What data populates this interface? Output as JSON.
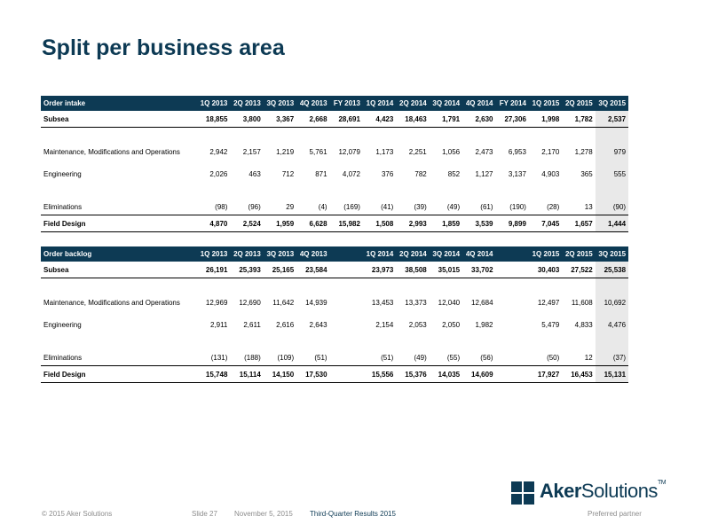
{
  "title": "Split per business area",
  "order_intake": {
    "header": [
      "Order intake",
      "1Q 2013",
      "2Q 2013",
      "3Q 2013",
      "4Q 2013",
      "FY 2013",
      "1Q 2014",
      "2Q 2014",
      "3Q 2014",
      "4Q 2014",
      "FY 2014",
      "1Q 2015",
      "2Q 2015",
      "3Q 2015"
    ],
    "rows": [
      [
        "Subsea",
        "18,855",
        "3,800",
        "3,367",
        "2,668",
        "28,691",
        "4,423",
        "18,463",
        "1,791",
        "2,630",
        "27,306",
        "1,998",
        "1,782",
        "2,537"
      ],
      [
        "Maintenance, Modifications and Operations",
        "2,942",
        "2,157",
        "1,219",
        "5,761",
        "12,079",
        "1,173",
        "2,251",
        "1,056",
        "2,473",
        "6,953",
        "2,170",
        "1,278",
        "979"
      ],
      [
        "Engineering",
        "2,026",
        "463",
        "712",
        "871",
        "4,072",
        "376",
        "782",
        "852",
        "1,127",
        "3,137",
        "4,903",
        "365",
        "555"
      ],
      [
        "Eliminations",
        "(98)",
        "(96)",
        "29",
        "(4)",
        "(169)",
        "(41)",
        "(39)",
        "(49)",
        "(61)",
        "(190)",
        "(28)",
        "13",
        "(90)"
      ],
      [
        "Field Design",
        "4,870",
        "2,524",
        "1,959",
        "6,628",
        "15,982",
        "1,508",
        "2,993",
        "1,859",
        "3,539",
        "9,899",
        "7,045",
        "1,657",
        "1,444"
      ]
    ]
  },
  "order_backlog": {
    "header": [
      "Order backlog",
      "1Q 2013",
      "2Q 2013",
      "3Q 2013",
      "4Q 2013",
      "",
      "1Q 2014",
      "2Q 2014",
      "3Q 2014",
      "4Q 2014",
      "",
      "1Q 2015",
      "2Q 2015",
      "3Q 2015"
    ],
    "rows": [
      [
        "Subsea",
        "26,191",
        "25,393",
        "25,165",
        "23,584",
        "",
        "23,973",
        "38,508",
        "35,015",
        "33,702",
        "",
        "30,403",
        "27,522",
        "25,538"
      ],
      [
        "Maintenance, Modifications and Operations",
        "12,969",
        "12,690",
        "11,642",
        "14,939",
        "",
        "13,453",
        "13,373",
        "12,040",
        "12,684",
        "",
        "12,497",
        "11,608",
        "10,692"
      ],
      [
        "Engineering",
        "2,911",
        "2,611",
        "2,616",
        "2,643",
        "",
        "2,154",
        "2,053",
        "2,050",
        "1,982",
        "",
        "5,479",
        "4,833",
        "4,476"
      ],
      [
        "Eliminations",
        "(131)",
        "(188)",
        "(109)",
        "(51)",
        "",
        "(51)",
        "(49)",
        "(55)",
        "(56)",
        "",
        "(50)",
        "12",
        "(37)"
      ],
      [
        "Field Design",
        "15,748",
        "15,114",
        "14,150",
        "17,530",
        "",
        "15,556",
        "15,376",
        "14,035",
        "14,609",
        "",
        "17,927",
        "16,453",
        "15,131"
      ]
    ]
  },
  "footer": {
    "copyright": "© 2015 Aker Solutions",
    "slide": "Slide 27",
    "date": "November 5, 2015",
    "event": "Third-Quarter Results 2015",
    "tagline": "Preferred partner"
  },
  "logo": {
    "word1": "Aker",
    "word2": "Solutions",
    "tm": "TM"
  },
  "colors": {
    "brand": "#0d3a54",
    "highlight": "#e9e9e9",
    "footer_gray": "#8c8c8c"
  }
}
